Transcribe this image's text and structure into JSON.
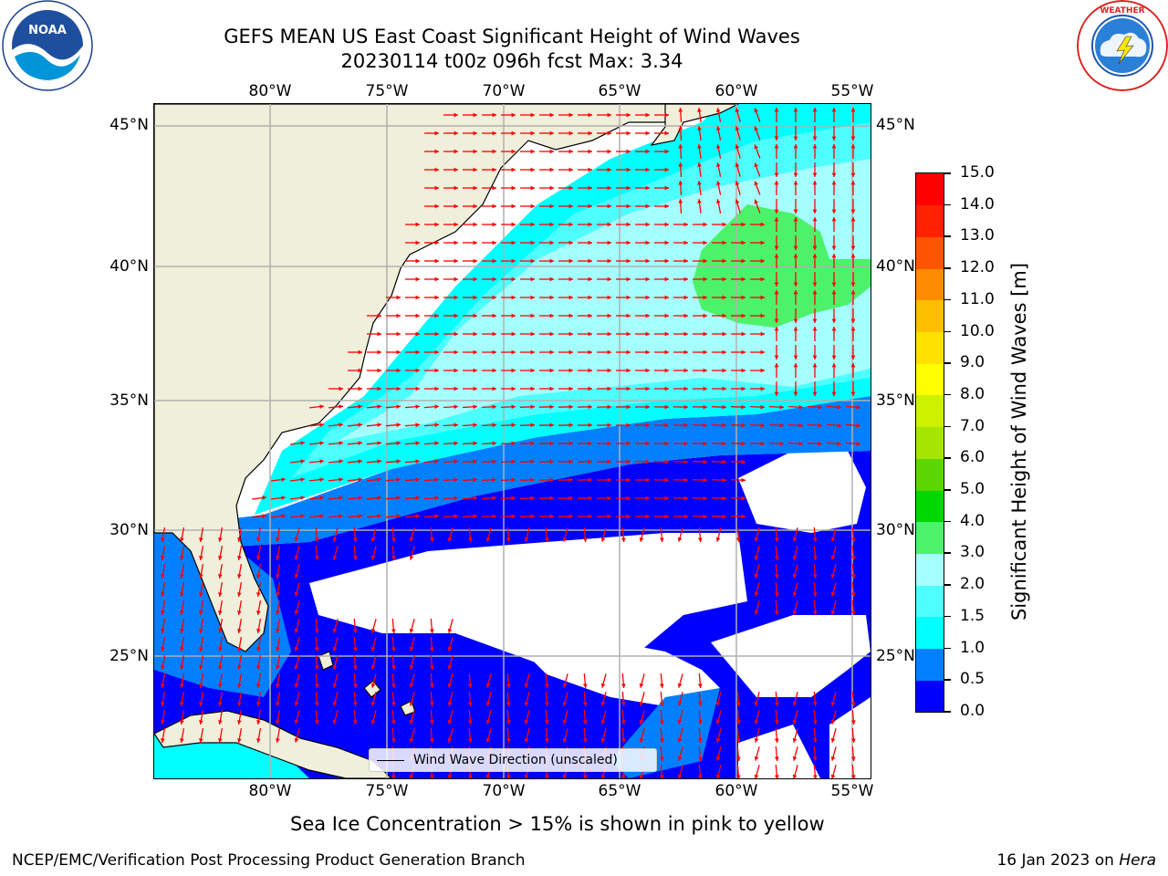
{
  "title": {
    "line1": "GEFS MEAN US East Coast Significant Height of Wind Waves",
    "line2": "20230114 t00z 096h fcst   Max: 3.34"
  },
  "logos": {
    "left": {
      "icon": "noaa-logo",
      "text": "NOAA"
    },
    "right": {
      "icon": "national-weather-service-logo",
      "text": "NATIONAL WEATHER SERVICE"
    }
  },
  "map": {
    "longitude_ticks": [
      "80°W",
      "75°W",
      "70°W",
      "65°W",
      "60°W",
      "55°W"
    ],
    "latitude_ticks": [
      "45°N",
      "40°N",
      "35°N",
      "30°N",
      "25°N"
    ],
    "gridlines": true,
    "land_color": "#efefdb",
    "arrow_color": "#ff0000",
    "legend": "Wind Wave Direction (unscaled)"
  },
  "colorbar": {
    "label": "Significant Height of Wind Waves [m]",
    "tick_labels": [
      "0.0",
      "0.5",
      "1.0",
      "1.5",
      "2.0",
      "3.0",
      "4.0",
      "5.0",
      "6.0",
      "7.0",
      "8.0",
      "9.0",
      "10.0",
      "11.0",
      "12.0",
      "13.0",
      "14.0",
      "15.0"
    ],
    "colors": [
      "#0000ff",
      "#0080ff",
      "#00ffff",
      "#4dffff",
      "#a6ffff",
      "#4cf26a",
      "#00d700",
      "#5cd600",
      "#a6e600",
      "#ccf200",
      "#ffff00",
      "#ffe100",
      "#ffbf00",
      "#ff8c00",
      "#ff5500",
      "#ff2200",
      "#ff0000"
    ]
  },
  "note": "Sea Ice Concentration > 15% is shown in pink to yellow",
  "footer": {
    "left": "NCEP/EMC/Verification Post Processing Product Generation Branch",
    "right_prefix": "16 Jan 2023 on ",
    "right_machine": "Hera"
  }
}
